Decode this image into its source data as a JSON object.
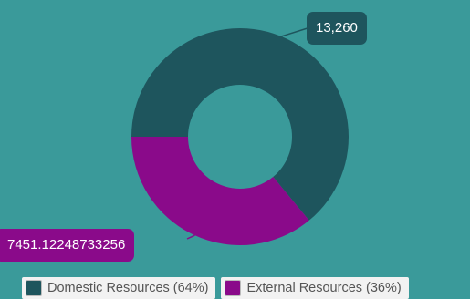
{
  "chart_data": {
    "type": "pie",
    "donut": true,
    "series": [
      {
        "name": "Domestic Resources (64%)",
        "value": 13260,
        "label": "13,260",
        "color": "#1e555d"
      },
      {
        "name": "External Resources (36%)",
        "value": 7451.12248733256,
        "label": "7451.12248733256",
        "color": "#8a0a8a"
      }
    ],
    "title": "",
    "legend_position": "bottom"
  },
  "colors": {
    "background": "#3a9a9a",
    "callout_domestic": "#1e555d",
    "callout_external": "#8a0a8a",
    "legend_bg": "#f2f2f2"
  }
}
